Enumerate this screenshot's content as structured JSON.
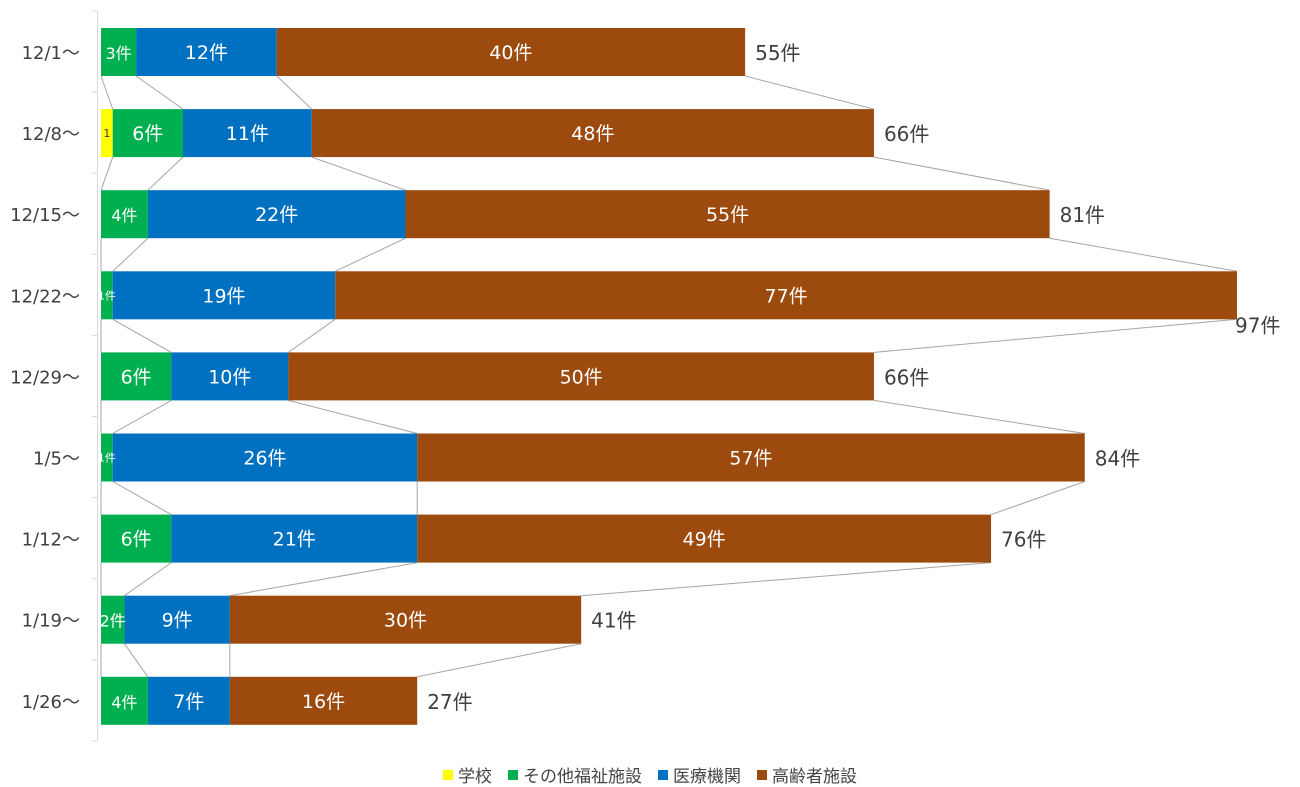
{
  "chart_data": {
    "type": "bar",
    "orientation": "horizontal",
    "stacked": true,
    "categories": [
      "12/1～",
      "12/8～",
      "12/15～",
      "12/22～",
      "12/29～",
      "1/5～",
      "1/12～",
      "1/19～",
      "1/26～"
    ],
    "series": [
      {
        "name": "学校",
        "color": "#FFFF00",
        "values": [
          0,
          1,
          0,
          0,
          0,
          0,
          0,
          0,
          0
        ],
        "labels": [
          "",
          "1",
          "",
          "",
          "",
          "",
          "",
          "",
          ""
        ]
      },
      {
        "name": "その他福祉施設",
        "color": "#00B050",
        "values": [
          3,
          6,
          4,
          1,
          6,
          1,
          6,
          2,
          4
        ],
        "labels": [
          "3件",
          "6件",
          "4件",
          "1件",
          "6件",
          "1件",
          "6件",
          "2件",
          "4件"
        ]
      },
      {
        "name": "医療機関",
        "color": "#0070C0",
        "values": [
          12,
          11,
          22,
          19,
          10,
          26,
          21,
          9,
          7
        ],
        "labels": [
          "12件",
          "11件",
          "22件",
          "19件",
          "10件",
          "26件",
          "21件",
          "9件",
          "7件"
        ]
      },
      {
        "name": "高齢者施設",
        "color": "#9C4A0E",
        "values": [
          40,
          48,
          55,
          77,
          50,
          57,
          49,
          30,
          16
        ],
        "labels": [
          "40件",
          "48件",
          "55件",
          "77件",
          "50件",
          "57件",
          "49件",
          "30件",
          "16件"
        ]
      }
    ],
    "totals": [
      55,
      66,
      81,
      97,
      66,
      84,
      76,
      41,
      27
    ],
    "total_labels": [
      "55件",
      "66件",
      "81件",
      "97件",
      "66件",
      "84件",
      "76件",
      "41件",
      "27件"
    ],
    "xlim": [
      0,
      97
    ],
    "series_lines": true,
    "grid": false,
    "legend_position": "bottom"
  }
}
